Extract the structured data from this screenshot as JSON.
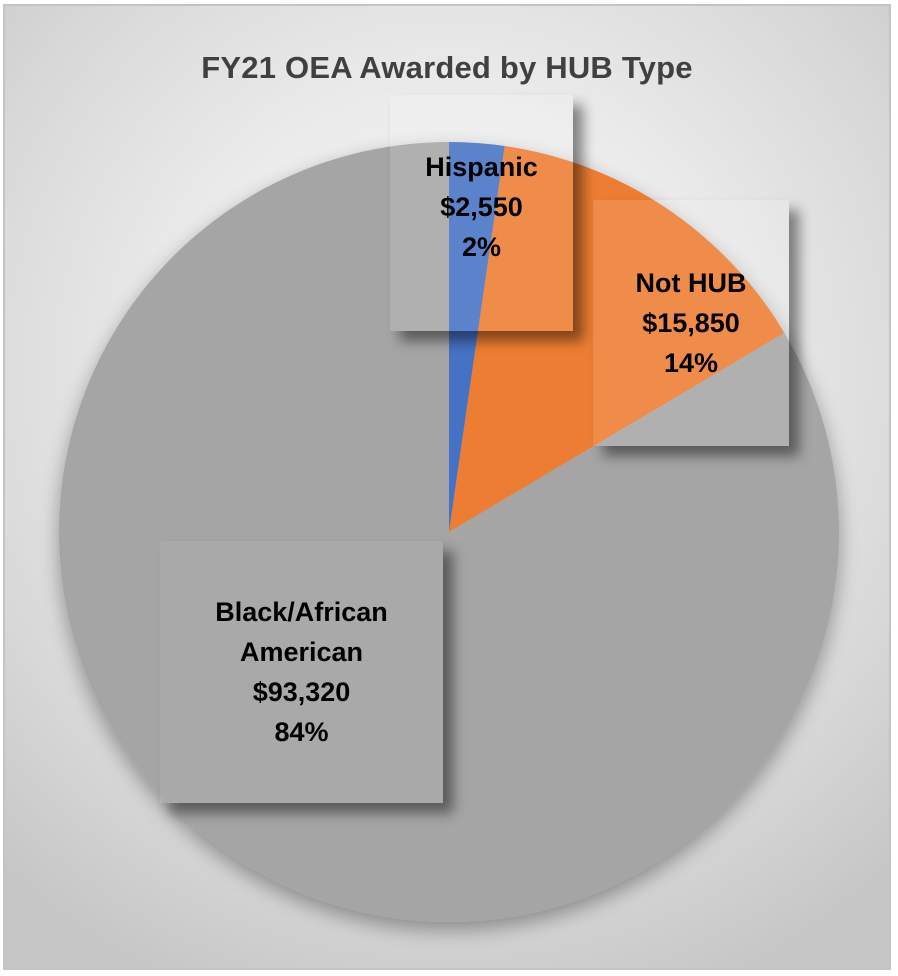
{
  "chart_data": {
    "type": "pie",
    "title": "FY21 OEA Awarded by HUB Type",
    "categories": [
      "Hispanic",
      "Not HUB",
      "Black/African American"
    ],
    "values": [
      2550,
      15850,
      93320
    ],
    "value_labels": [
      "$2,550",
      "$15,850",
      "$93,320"
    ],
    "percentages": [
      2,
      14,
      84
    ],
    "percent_labels": [
      "2%",
      "14%",
      "84%"
    ],
    "colors": [
      "#4472c4",
      "#ed7d31",
      "#a5a5a5"
    ],
    "start_angle_deg": 0,
    "direction": "clockwise",
    "legend": "none",
    "data_labels": "category, value, percentage"
  },
  "labels": {
    "hispanic": {
      "name": "Hispanic",
      "value": "$2,550",
      "pct": "2%"
    },
    "not_hub": {
      "name_line1": "Not HUB",
      "value": "$15,850",
      "pct": "14%"
    },
    "black": {
      "name_line1": "Black/African",
      "name_line2": "American",
      "value": "$93,320",
      "pct": "84%"
    }
  }
}
